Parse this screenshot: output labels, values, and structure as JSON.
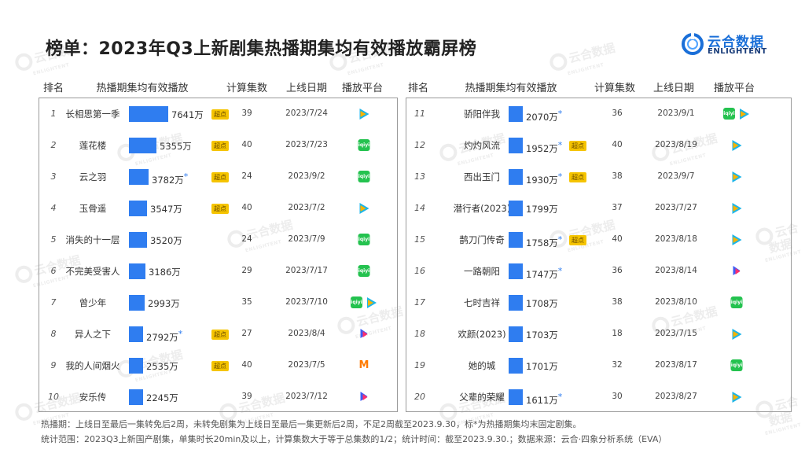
{
  "title": "榜单：2023年Q3上新剧集热播期集均有效播放霸屏榜",
  "logo": {
    "cn": "云合数据",
    "en": "ENLIGHTENT",
    "ring_color": "#1a6fd8"
  },
  "watermark": {
    "cn": "云合数据",
    "en": "ENLIGHTENT"
  },
  "headers": {
    "rank": "排名",
    "metric": "热播期集均有效播放",
    "episodes": "计算集数",
    "date": "上线日期",
    "platform": "播放平台"
  },
  "badge_label": "超点",
  "star_label": "*",
  "colors": {
    "bar": "#2f7df0",
    "badge": "#f5c400",
    "iqiyi": "#24c24f",
    "tencent": "#1db5e8"
  },
  "platform_icons": {
    "tencent": "tencent-video-icon",
    "iqiyi": "iqiyi-icon",
    "youku": "youku-icon",
    "mango": "mango-tv-icon"
  },
  "iqiyi_icon_text": "iqiyi",
  "youku_icon_text": "YOUKU",
  "mango_icon_text": "M",
  "chart_data": {
    "type": "bar",
    "title": "榜单：2023年Q3上新剧集热播期集均有效播放霸屏榜",
    "unit": "万",
    "xlabel": "热播期集均有效播放",
    "categories": [
      "长相思第一季",
      "莲花楼",
      "云之羽",
      "玉骨遥",
      "消失的十一层",
      "不完美受害人",
      "曾少年",
      "异人之下",
      "我的人间烟火",
      "安乐传",
      "骄阳伴我",
      "灼灼风流",
      "西出玉门",
      "潜行者(2023)",
      "鹊刀门传奇",
      "一路朝阳",
      "七时吉祥",
      "欢颜(2023)",
      "她的城",
      "父辈的荣耀"
    ],
    "values": [
      7641,
      5355,
      3782,
      3547,
      3520,
      3186,
      2993,
      2792,
      2535,
      2245,
      2070,
      1952,
      1930,
      1799,
      1758,
      1747,
      1708,
      1703,
      1701,
      1611
    ],
    "rows": [
      {
        "rank": "1",
        "name": "长相思第一季",
        "value": 7641,
        "value_text": "7641万",
        "star": false,
        "badge": true,
        "episodes": "39",
        "date": "2023/7/24",
        "platforms": [
          "tencent"
        ]
      },
      {
        "rank": "2",
        "name": "莲花楼",
        "value": 5355,
        "value_text": "5355万",
        "star": false,
        "badge": true,
        "episodes": "40",
        "date": "2023/7/23",
        "platforms": [
          "iqiyi"
        ]
      },
      {
        "rank": "3",
        "name": "云之羽",
        "value": 3782,
        "value_text": "3782万",
        "star": true,
        "badge": true,
        "episodes": "24",
        "date": "2023/9/2",
        "platforms": [
          "iqiyi"
        ]
      },
      {
        "rank": "4",
        "name": "玉骨遥",
        "value": 3547,
        "value_text": "3547万",
        "star": false,
        "badge": true,
        "episodes": "40",
        "date": "2023/7/2",
        "platforms": [
          "tencent"
        ]
      },
      {
        "rank": "5",
        "name": "消失的十一层",
        "value": 3520,
        "value_text": "3520万",
        "star": false,
        "badge": false,
        "episodes": "24",
        "date": "2023/7/9",
        "platforms": [
          "iqiyi"
        ]
      },
      {
        "rank": "6",
        "name": "不完美受害人",
        "value": 3186,
        "value_text": "3186万",
        "star": false,
        "badge": false,
        "episodes": "29",
        "date": "2023/7/17",
        "platforms": [
          "iqiyi"
        ]
      },
      {
        "rank": "7",
        "name": "曾少年",
        "value": 2993,
        "value_text": "2993万",
        "star": false,
        "badge": false,
        "episodes": "35",
        "date": "2023/7/10",
        "platforms": [
          "iqiyi",
          "tencent"
        ]
      },
      {
        "rank": "8",
        "name": "异人之下",
        "value": 2792,
        "value_text": "2792万",
        "star": true,
        "badge": true,
        "episodes": "27",
        "date": "2023/8/4",
        "platforms": [
          "youku"
        ]
      },
      {
        "rank": "9",
        "name": "我的人间烟火",
        "value": 2535,
        "value_text": "2535万",
        "star": false,
        "badge": true,
        "episodes": "40",
        "date": "2023/7/5",
        "platforms": [
          "mango"
        ]
      },
      {
        "rank": "10",
        "name": "安乐传",
        "value": 2245,
        "value_text": "2245万",
        "star": false,
        "badge": false,
        "episodes": "39",
        "date": "2023/7/12",
        "platforms": [
          "youku"
        ]
      },
      {
        "rank": "11",
        "name": "骄阳伴我",
        "value": 2070,
        "value_text": "2070万",
        "star": true,
        "badge": false,
        "episodes": "36",
        "date": "2023/9/1",
        "platforms": [
          "iqiyi",
          "tencent"
        ]
      },
      {
        "rank": "12",
        "name": "灼灼风流",
        "value": 1952,
        "value_text": "1952万",
        "star": true,
        "badge": true,
        "episodes": "40",
        "date": "2023/8/19",
        "platforms": [
          "tencent"
        ]
      },
      {
        "rank": "13",
        "name": "西出玉门",
        "value": 1930,
        "value_text": "1930万",
        "star": true,
        "badge": true,
        "episodes": "38",
        "date": "2023/9/7",
        "platforms": [
          "tencent"
        ]
      },
      {
        "rank": "14",
        "name": "潜行者(2023)",
        "value": 1799,
        "value_text": "1799万",
        "star": false,
        "badge": false,
        "episodes": "37",
        "date": "2023/7/27",
        "platforms": [
          "tencent"
        ]
      },
      {
        "rank": "15",
        "name": "鹊刀门传奇",
        "value": 1758,
        "value_text": "1758万",
        "star": true,
        "badge": true,
        "episodes": "40",
        "date": "2023/8/18",
        "platforms": [
          "tencent"
        ]
      },
      {
        "rank": "16",
        "name": "一路朝阳",
        "value": 1747,
        "value_text": "1747万",
        "star": true,
        "badge": false,
        "episodes": "36",
        "date": "2023/8/14",
        "platforms": [
          "youku"
        ]
      },
      {
        "rank": "17",
        "name": "七时吉祥",
        "value": 1708,
        "value_text": "1708万",
        "star": false,
        "badge": false,
        "episodes": "38",
        "date": "2023/8/10",
        "platforms": [
          "iqiyi"
        ]
      },
      {
        "rank": "18",
        "name": "欢颜(2023)",
        "value": 1703,
        "value_text": "1703万",
        "star": false,
        "badge": false,
        "episodes": "18",
        "date": "2023/7/15",
        "platforms": [
          "tencent"
        ]
      },
      {
        "rank": "19",
        "name": "她的城",
        "value": 1701,
        "value_text": "1701万",
        "star": false,
        "badge": false,
        "episodes": "32",
        "date": "2023/8/17",
        "platforms": [
          "iqiyi"
        ]
      },
      {
        "rank": "20",
        "name": "父辈的荣耀",
        "value": 1611,
        "value_text": "1611万",
        "star": true,
        "badge": false,
        "episodes": "30",
        "date": "2023/8/27",
        "platforms": [
          "tencent"
        ]
      }
    ]
  },
  "footnotes": [
    "热播期：上线日至最后一集转免后2周，未转免剧集为上线日至最后一集更新后2周，不足2周截至2023.9.30，标*为热播期集均末固定剧集。",
    "统计范围：2023Q3上新国产剧集，单集时长20min及以上，计算集数大于等于总集数的1/2；统计时间：截至2023.9.30.；数据来源：云合·四象分析系统（EVA）"
  ]
}
